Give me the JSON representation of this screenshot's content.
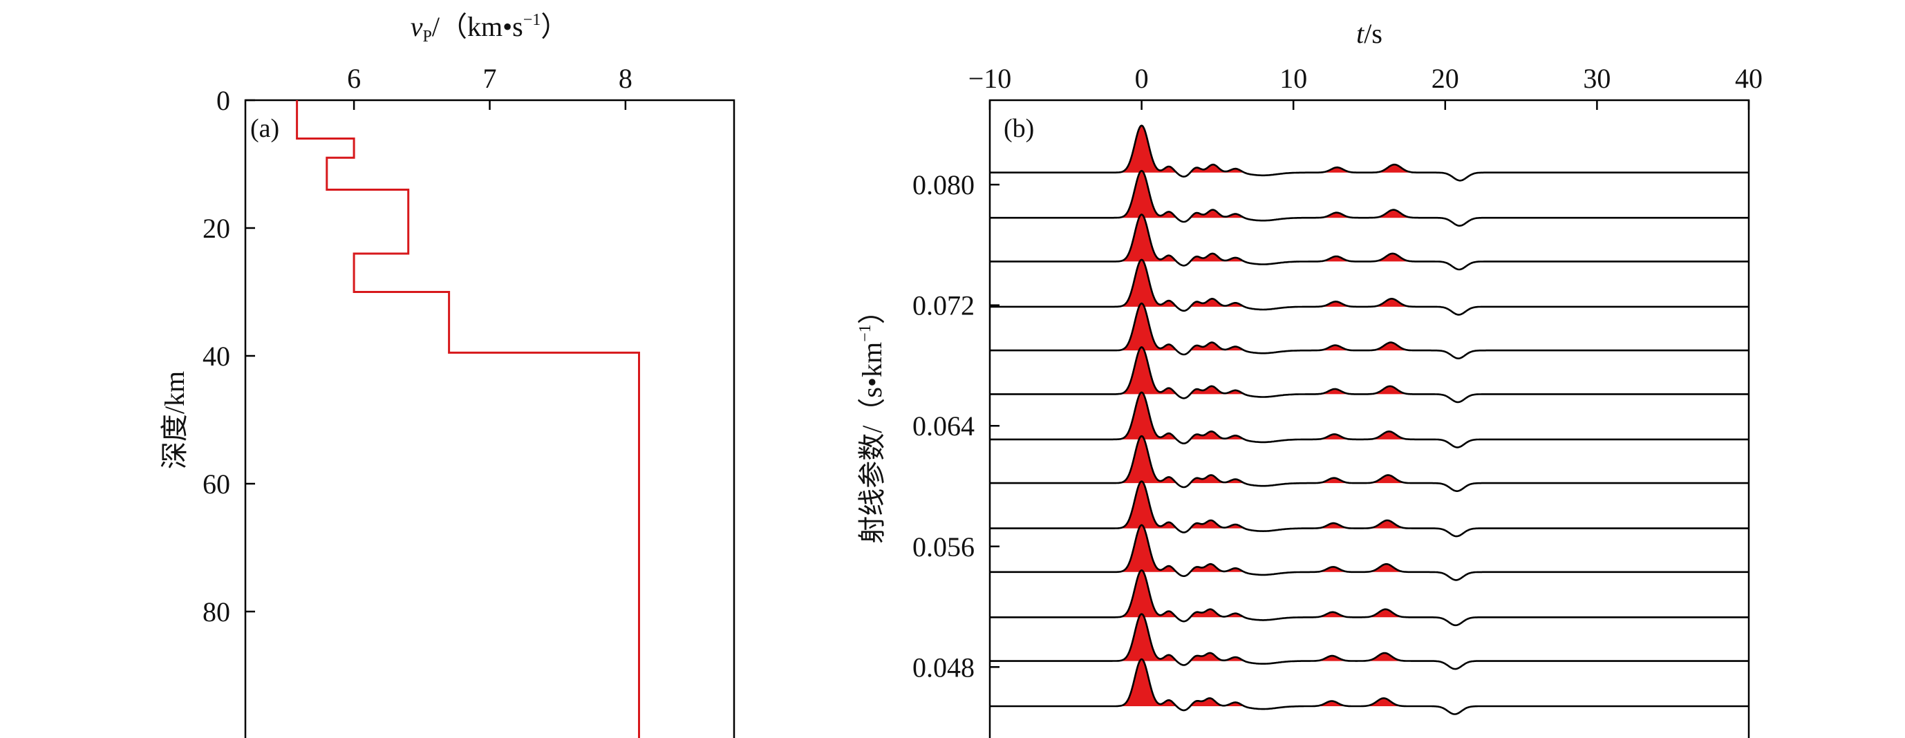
{
  "chart_data": [
    {
      "panel": "(a)",
      "type": "line",
      "xlabel": {
        "symbol": "v",
        "sub": "P",
        "unit_open": "/（km",
        "unit_mid": "s",
        "unit_sup": "−1",
        "unit_close": "）"
      },
      "ylabel": "深度/km",
      "x_axis_position": "top",
      "y_inverted": true,
      "xlim": [
        5.2,
        8.8
      ],
      "ylim": [
        0,
        100
      ],
      "xticks": [
        6,
        7,
        8
      ],
      "yticks": [
        0,
        20,
        40,
        60,
        80
      ],
      "line_color": "#d7191c",
      "profile": [
        {
          "depth_top": 0,
          "depth_bottom": 6,
          "vp": 5.58
        },
        {
          "depth_top": 6,
          "depth_bottom": 9,
          "vp": 6.0
        },
        {
          "depth_top": 9,
          "depth_bottom": 14,
          "vp": 5.8
        },
        {
          "depth_top": 14,
          "depth_bottom": 24,
          "vp": 6.4
        },
        {
          "depth_top": 24,
          "depth_bottom": 30,
          "vp": 6.0
        },
        {
          "depth_top": 30,
          "depth_bottom": 39.5,
          "vp": 6.7
        },
        {
          "depth_top": 39.5,
          "depth_bottom": 100,
          "vp": 8.1
        }
      ]
    },
    {
      "panel": "(b)",
      "type": "line",
      "xlabel": {
        "symbol": "t",
        "unit": "/s"
      },
      "ylabel": {
        "text": "射线参数/（s",
        "unit_sup": "−1",
        "unit_close": "）",
        "unit_mid": "km"
      },
      "x_axis_position": "top",
      "xlim": [
        -10,
        40
      ],
      "xticks": [
        -10,
        0,
        10,
        20,
        30,
        40
      ],
      "xtick_labels": [
        "−10",
        "0",
        "10",
        "20",
        "30",
        "40"
      ],
      "ylim": [
        0.0432,
        0.0856
      ],
      "yticks": [
        0.08,
        0.072,
        0.064,
        0.056,
        0.048
      ],
      "ytick_labels": [
        "0.080",
        "0.072",
        "0.064",
        "0.056",
        "0.048"
      ],
      "fill_color": "#e31a1c",
      "line_color": "#000000",
      "traces": {
        "ray_parameters": [
          0.0808,
          0.0778,
          0.0749,
          0.0719,
          0.069,
          0.0661,
          0.0631,
          0.0602,
          0.0572,
          0.0543,
          0.0513,
          0.0484,
          0.0454
        ],
        "pulses": [
          {
            "name": "P",
            "t0": 0.0,
            "t_slope": 0,
            "amp": 1.0,
            "width": 0.45
          },
          {
            "name": "p1",
            "t0": 1.8,
            "t_slope": 0,
            "amp": 0.13,
            "width": 0.3
          },
          {
            "name": "p2",
            "t0": 3.6,
            "t_slope": 0,
            "amp": 0.11,
            "width": 0.3
          },
          {
            "name": "p3",
            "t0": 4.6,
            "t_slope": -6,
            "amp": 0.17,
            "width": 0.35
          },
          {
            "name": "p4",
            "t0": 6.2,
            "t_slope": 0,
            "amp": 0.09,
            "width": 0.35
          },
          {
            "name": "p5",
            "t0": 12.7,
            "t_slope": -10,
            "amp": 0.11,
            "width": 0.4
          },
          {
            "name": "p6",
            "t0": 16.3,
            "t_slope": -20,
            "amp": 0.17,
            "width": 0.45
          },
          {
            "name": "n1",
            "t0": 2.8,
            "t_slope": 0,
            "amp": -0.09,
            "width": 0.35
          },
          {
            "name": "n2",
            "t0": 8.0,
            "t_slope": 0,
            "amp": -0.06,
            "width": 0.9
          },
          {
            "name": "n3",
            "t0": 20.8,
            "t_slope": -10,
            "amp": -0.17,
            "width": 0.45
          }
        ]
      }
    }
  ]
}
